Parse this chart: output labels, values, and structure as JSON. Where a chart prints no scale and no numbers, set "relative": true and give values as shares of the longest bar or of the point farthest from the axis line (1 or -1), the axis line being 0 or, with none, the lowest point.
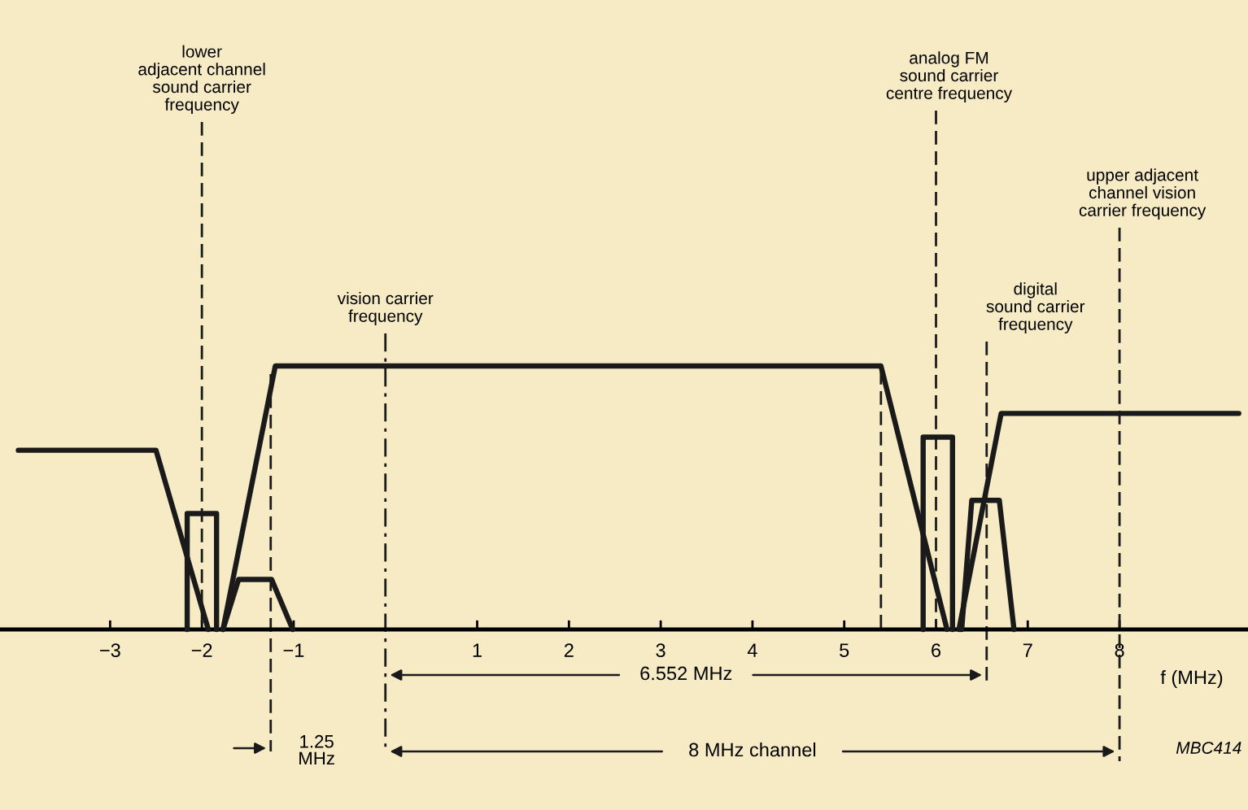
{
  "chart_data": {
    "type": "line",
    "relative": true,
    "xlabel": "f (MHz)",
    "xlim": [
      -4.2,
      9.4
    ],
    "xticks": [
      -3,
      -2,
      -1,
      1,
      2,
      3,
      4,
      5,
      6,
      7,
      8
    ],
    "series": [
      {
        "color": "#1a1a1a",
        "x": [
          -4.0,
          -2.5,
          -1.93
        ],
        "values": [
          0.68,
          0.68,
          0
        ]
      },
      {
        "color": "#1a1a1a",
        "x": [
          -2.16,
          -2.16,
          -1.84,
          -1.84
        ],
        "values": [
          0,
          0.44,
          0.44,
          0
        ]
      },
      {
        "color": "#1a1a1a",
        "x": [
          -1.77,
          -1.6,
          -1.24,
          -1.01
        ],
        "values": [
          0,
          0.19,
          0.19,
          0
        ]
      },
      {
        "color": "#1a1a1a",
        "x": [
          -1.77,
          -1.2,
          5.4,
          6.12
        ],
        "values": [
          0,
          1,
          1,
          0
        ]
      },
      {
        "color": "#1a1a1a",
        "x": [
          5.86,
          5.86,
          6.18,
          6.18
        ],
        "values": [
          0,
          0.73,
          0.73,
          0
        ]
      },
      {
        "color": "#1a1a1a",
        "x": [
          6.28,
          6.39,
          6.69,
          6.85
        ],
        "values": [
          0,
          0.49,
          0.49,
          0
        ]
      },
      {
        "color": "#1a1a1a",
        "x": [
          6.25,
          6.71,
          9.3
        ],
        "values": [
          0,
          0.82,
          0.82
        ]
      }
    ],
    "ref_lines": [
      {
        "axis": "x",
        "value": -2,
        "label": "lower\nadjacent channel\nsound carrier\nfrequency",
        "line_style": "dashed"
      },
      {
        "axis": "x",
        "value": -1.25,
        "label": null,
        "line_style": "dashed"
      },
      {
        "axis": "x",
        "value": 0,
        "label": "vision carrier\nfrequency",
        "line_style": "dashdot"
      },
      {
        "axis": "x",
        "value": 5.4,
        "label": null,
        "line_style": "dashed"
      },
      {
        "axis": "x",
        "value": 6,
        "label": "analog FM\nsound carrier\ncentre frequency",
        "line_style": "dashed"
      },
      {
        "axis": "x",
        "value": 6.552,
        "label": "digital\nsound carrier\nfrequency",
        "line_style": "dashed"
      },
      {
        "axis": "x",
        "value": 8,
        "label": "upper adjacent\nchannel vision\ncarrier frequency",
        "line_style": "dashed"
      }
    ],
    "annotations": [
      "6.552 MHz",
      "8 MHz channel",
      "1.25\nMHz",
      "MBC414"
    ],
    "marker": "none",
    "line_style": "solid",
    "grid": false
  }
}
